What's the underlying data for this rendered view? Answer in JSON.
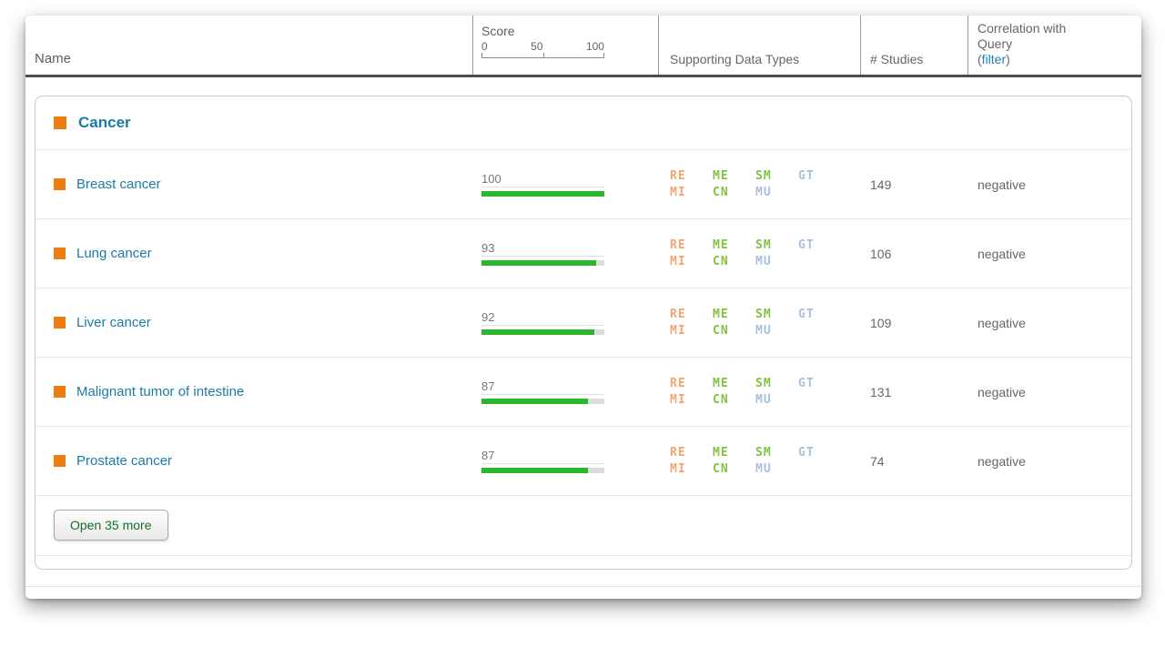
{
  "table": {
    "columns": {
      "name": "Name",
      "score": {
        "label": "Score",
        "ticks": [
          "0",
          "50",
          "100"
        ]
      },
      "types": "Supporting Data Types",
      "studies": "# Studies",
      "correlation": {
        "line1": "Correlation with",
        "line2": "Query",
        "filter_prefix": "(",
        "filter_link": "filter",
        "filter_suffix": ")"
      }
    },
    "group": {
      "name": "Cancer"
    },
    "rows": [
      {
        "name": "Breast cancer",
        "score": 100,
        "types": [
          [
            "RE",
            "ME",
            "SM",
            "GT"
          ],
          [
            "MI",
            "CN",
            "MU"
          ]
        ],
        "studies": "149",
        "correlation": "negative"
      },
      {
        "name": "Lung cancer",
        "score": 93,
        "types": [
          [
            "RE",
            "ME",
            "SM",
            "GT"
          ],
          [
            "MI",
            "CN",
            "MU"
          ]
        ],
        "studies": "106",
        "correlation": "negative"
      },
      {
        "name": "Liver cancer",
        "score": 92,
        "types": [
          [
            "RE",
            "ME",
            "SM",
            "GT"
          ],
          [
            "MI",
            "CN",
            "MU"
          ]
        ],
        "studies": "109",
        "correlation": "negative"
      },
      {
        "name": "Malignant tumor of intestine",
        "score": 87,
        "types": [
          [
            "RE",
            "ME",
            "SM",
            "GT"
          ],
          [
            "MI",
            "CN",
            "MU"
          ]
        ],
        "studies": "131",
        "correlation": "negative"
      },
      {
        "name": "Prostate cancer",
        "score": 87,
        "types": [
          [
            "RE",
            "ME",
            "SM",
            "GT"
          ],
          [
            "MI",
            "CN",
            "MU"
          ]
        ],
        "studies": "74",
        "correlation": "negative"
      }
    ],
    "open_more_label": "Open 35 more"
  },
  "colors": {
    "accent_orange": "#ec7d10",
    "link_teal": "#1b7ca6",
    "filter_link_blue": "#1c82b0",
    "score_bar_green": "#2db52d",
    "button_text_green": "#156f2a",
    "type_colors": {
      "RE": "#f5a571",
      "MI": "#f5a571",
      "ME": "#82c341",
      "CN": "#82c341",
      "SM": "#82c341",
      "GT": "#a6c1e0",
      "MU": "#a6c1e0"
    }
  }
}
